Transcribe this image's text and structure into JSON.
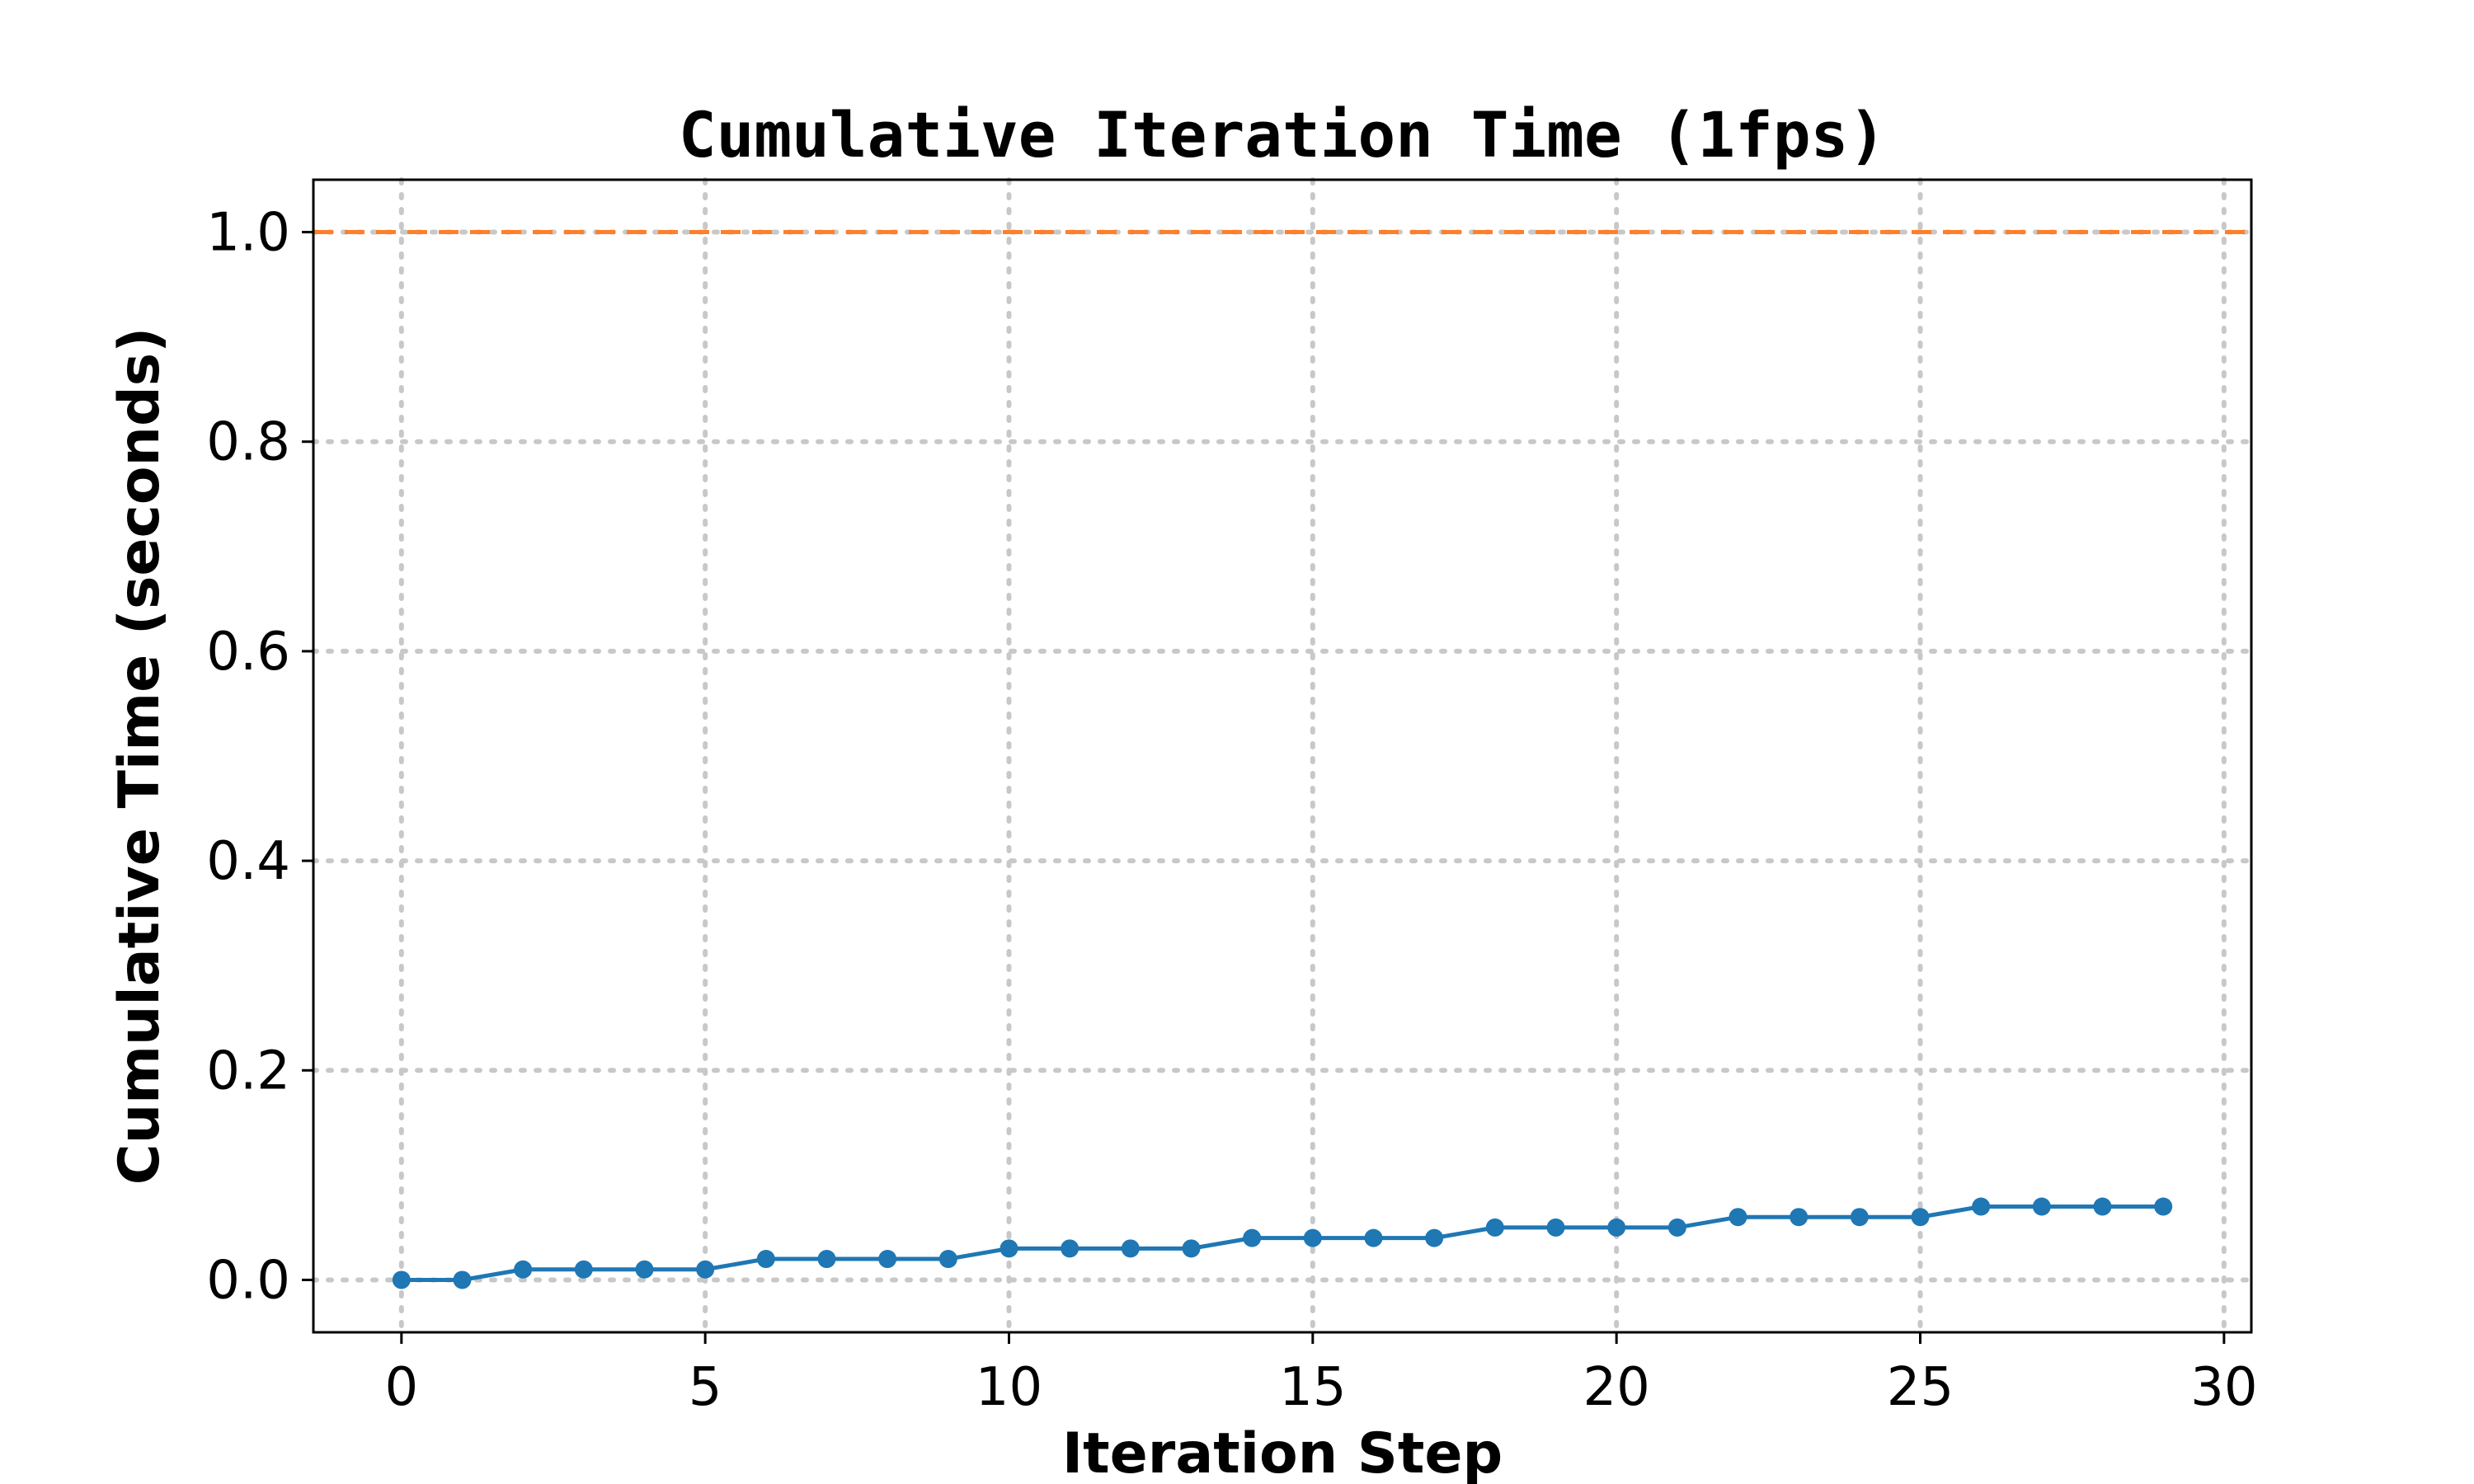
{
  "chart_data": {
    "type": "line",
    "title": "Cumulative Iteration Time (1fps)",
    "xlabel": "Iteration Step",
    "ylabel": "Cumulative Time (seconds)",
    "xlim": [
      -1.45,
      30.45
    ],
    "ylim": [
      -0.05,
      1.05
    ],
    "xticks": [
      0,
      5,
      10,
      15,
      20,
      25,
      30
    ],
    "xtick_labels": [
      "0",
      "5",
      "10",
      "15",
      "20",
      "25",
      "30"
    ],
    "yticks": [
      0.0,
      0.2,
      0.4,
      0.6,
      0.8,
      1.0
    ],
    "ytick_labels": [
      "0.0",
      "0.2",
      "0.4",
      "0.6",
      "0.8",
      "1.0"
    ],
    "grid": true,
    "series": [
      {
        "x": [
          0,
          1,
          2,
          3,
          4,
          5,
          6,
          7,
          8,
          9,
          10,
          11,
          12,
          13,
          14,
          15,
          16,
          17,
          18,
          19,
          20,
          21,
          22,
          23,
          24,
          25,
          26,
          27,
          28,
          29
        ],
        "values": [
          0.0,
          0.0,
          0.01,
          0.01,
          0.01,
          0.01,
          0.02,
          0.02,
          0.02,
          0.02,
          0.03,
          0.03,
          0.03,
          0.03,
          0.04,
          0.04,
          0.04,
          0.04,
          0.05,
          0.05,
          0.05,
          0.05,
          0.06,
          0.06,
          0.06,
          0.06,
          0.07,
          0.07,
          0.07,
          0.07
        ],
        "color": "#1f77b4",
        "marker": "circle"
      }
    ],
    "reference_lines": [
      {
        "axis": "y",
        "value": 1.0,
        "color": "#ff7f2a",
        "style": "dashed"
      }
    ]
  }
}
